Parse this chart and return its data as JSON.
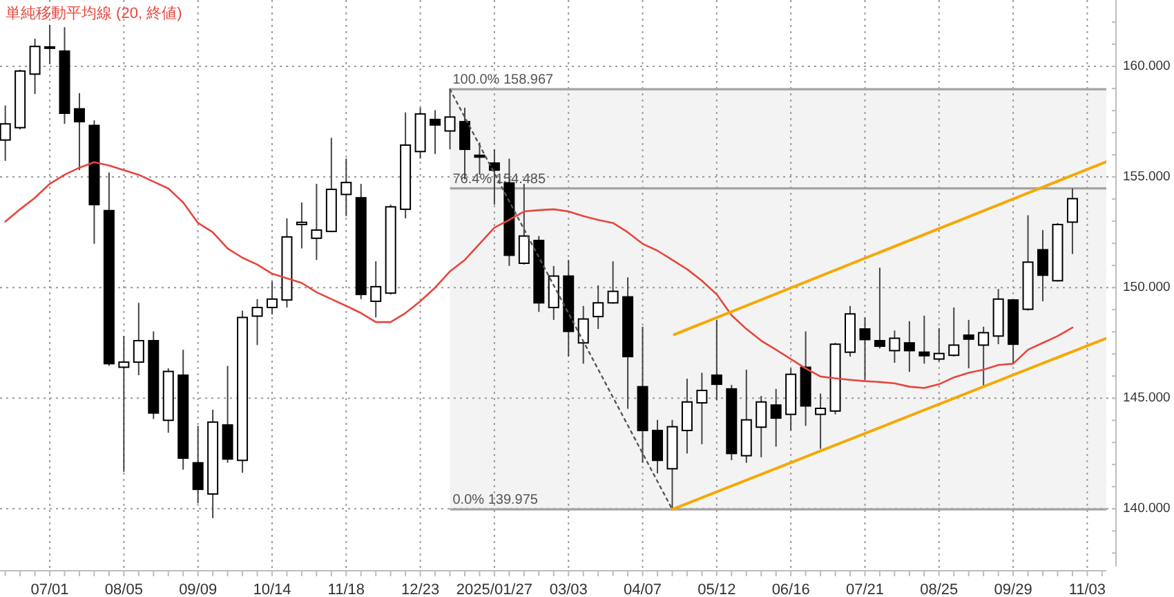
{
  "chart_data": {
    "type": "candlestick",
    "color": "#000000",
    "x": [
      "2024-06-10",
      "2024-06-17",
      "2024-06-24",
      "2024-07-01",
      "2024-07-08",
      "2024-07-15",
      "2024-07-22",
      "2024-07-29",
      "2024-08-05",
      "2024-08-12",
      "2024-08-19",
      "2024-08-26",
      "2024-09-02",
      "2024-09-09",
      "2024-09-16",
      "2024-09-23",
      "2024-09-30",
      "2024-10-07",
      "2024-10-14",
      "2024-10-21",
      "2024-10-28",
      "2024-11-04",
      "2024-11-11",
      "2024-11-18",
      "2024-11-25",
      "2024-12-02",
      "2024-12-09",
      "2024-12-16",
      "2024-12-23",
      "2024-12-30",
      "2025-01-06",
      "2025-01-13",
      "2025-01-20",
      "2025-01-27",
      "2025-02-03",
      "2025-02-10",
      "2025-02-17",
      "2025-02-24",
      "2025-03-03",
      "2025-03-10",
      "2025-03-17",
      "2025-03-24",
      "2025-03-31",
      "2025-04-07",
      "2025-04-14",
      "2025-04-21",
      "2025-04-28",
      "2025-05-05",
      "2025-05-12",
      "2025-05-19",
      "2025-05-26",
      "2025-06-02",
      "2025-06-09",
      "2025-06-16",
      "2025-06-23",
      "2025-06-30",
      "2025-07-07",
      "2025-07-14",
      "2025-07-21",
      "2025-07-28",
      "2025-08-04",
      "2025-08-11",
      "2025-08-18",
      "2025-08-25",
      "2025-09-01",
      "2025-09-08",
      "2025-09-15",
      "2025-09-22",
      "2025-09-29",
      "2025-10-06",
      "2025-10-13",
      "2025-10-20",
      "2025-10-27"
    ],
    "ohlc": [
      [
        156.67,
        158.23,
        155.73,
        157.4
      ],
      [
        157.23,
        159.85,
        157.15,
        159.79
      ],
      [
        159.65,
        161.25,
        158.75,
        160.9
      ],
      [
        160.85,
        161.88,
        160.1,
        160.88
      ],
      [
        160.69,
        161.77,
        157.4,
        157.88
      ],
      [
        158.08,
        158.79,
        155.31,
        157.5
      ],
      [
        157.33,
        157.56,
        151.98,
        153.75
      ],
      [
        153.48,
        155.21,
        146.46,
        146.56
      ],
      [
        146.4,
        147.81,
        141.67,
        146.63
      ],
      [
        146.63,
        149.31,
        146.04,
        147.6
      ],
      [
        147.6,
        148.02,
        144.06,
        144.33
      ],
      [
        144.0,
        146.35,
        143.44,
        146.21
      ],
      [
        146.04,
        147.19,
        141.77,
        142.29
      ],
      [
        142.08,
        143.75,
        140.25,
        140.88
      ],
      [
        140.67,
        144.48,
        139.58,
        143.92
      ],
      [
        143.79,
        146.46,
        142.08,
        142.25
      ],
      [
        142.19,
        148.96,
        141.63,
        148.65
      ],
      [
        148.71,
        149.48,
        147.4,
        149.1
      ],
      [
        149.1,
        150.27,
        148.79,
        149.48
      ],
      [
        149.44,
        153.13,
        149.1,
        152.29
      ],
      [
        152.85,
        153.85,
        151.77,
        152.95
      ],
      [
        152.23,
        154.69,
        151.25,
        152.6
      ],
      [
        152.54,
        156.77,
        152.5,
        154.44
      ],
      [
        154.21,
        155.83,
        153.23,
        154.75
      ],
      [
        154.06,
        154.69,
        149.48,
        149.69
      ],
      [
        149.38,
        151.19,
        148.65,
        150.04
      ],
      [
        149.75,
        153.75,
        149.69,
        153.65
      ],
      [
        153.54,
        157.92,
        153.13,
        156.44
      ],
      [
        156.15,
        158.13,
        155.83,
        157.85
      ],
      [
        157.6,
        158.02,
        156.04,
        157.35
      ],
      [
        157.08,
        158.967,
        156.25,
        157.71
      ],
      [
        157.5,
        158.13,
        154.9,
        156.25
      ],
      [
        155.98,
        156.56,
        155.1,
        155.9
      ],
      [
        155.63,
        156.25,
        153.75,
        155.31
      ],
      [
        154.73,
        155.83,
        150.98,
        151.46
      ],
      [
        151.1,
        154.69,
        151.04,
        152.33
      ],
      [
        152.13,
        152.33,
        148.9,
        149.31
      ],
      [
        149.1,
        150.98,
        148.54,
        150.52
      ],
      [
        150.52,
        151.25,
        146.88,
        148.02
      ],
      [
        147.5,
        149.17,
        146.56,
        148.58
      ],
      [
        148.69,
        150.1,
        148.13,
        149.31
      ],
      [
        149.31,
        151.19,
        149.27,
        149.83
      ],
      [
        149.58,
        150.46,
        144.52,
        146.88
      ],
      [
        145.52,
        148.23,
        142.08,
        143.54
      ],
      [
        143.54,
        144.02,
        141.6,
        142.19
      ],
      [
        141.81,
        144.02,
        139.975,
        143.71
      ],
      [
        143.54,
        145.88,
        142.5,
        144.83
      ],
      [
        144.79,
        146.15,
        142.92,
        145.35
      ],
      [
        146.04,
        148.54,
        144.9,
        145.63
      ],
      [
        145.42,
        145.6,
        142.2,
        142.5
      ],
      [
        142.4,
        146.29,
        142.08,
        144.02
      ],
      [
        143.69,
        145.1,
        142.33,
        144.83
      ],
      [
        144.69,
        145.42,
        142.81,
        144.1
      ],
      [
        144.27,
        146.35,
        143.54,
        146.08
      ],
      [
        146.4,
        148.02,
        143.75,
        144.65
      ],
      [
        144.27,
        145.21,
        142.71,
        144.54
      ],
      [
        144.42,
        147.5,
        144.27,
        147.44
      ],
      [
        147.08,
        149.17,
        146.88,
        148.81
      ],
      [
        148.13,
        148.65,
        145.83,
        147.65
      ],
      [
        147.6,
        150.9,
        147.25,
        147.35
      ],
      [
        147.15,
        148.06,
        146.6,
        147.71
      ],
      [
        147.5,
        148.48,
        146.19,
        147.15
      ],
      [
        147.08,
        148.73,
        146.56,
        146.92
      ],
      [
        146.77,
        148.17,
        146.67,
        147.02
      ],
      [
        146.94,
        149.1,
        146.88,
        147.4
      ],
      [
        147.85,
        148.54,
        146.35,
        147.67
      ],
      [
        147.4,
        148.23,
        145.52,
        147.96
      ],
      [
        147.81,
        149.94,
        147.44,
        149.48
      ],
      [
        149.44,
        149.48,
        146.56,
        147.44
      ],
      [
        149.02,
        153.27,
        148.96,
        151.15
      ],
      [
        151.71,
        152.6,
        149.38,
        150.56
      ],
      [
        150.31,
        152.92,
        150.27,
        152.85
      ],
      [
        152.96,
        154.48,
        151.52,
        154.02
      ]
    ],
    "series": [
      {
        "type": "line",
        "name": "単純移動平均線 (20, 終値)",
        "color": "#e8453c",
        "values": [
          152.98,
          153.54,
          154.06,
          154.69,
          155.1,
          155.42,
          155.67,
          155.52,
          155.31,
          155.1,
          154.79,
          154.48,
          153.85,
          152.92,
          152.5,
          151.77,
          151.35,
          151.04,
          150.63,
          150.42,
          150.21,
          149.79,
          149.48,
          149.17,
          148.85,
          148.44,
          148.44,
          148.85,
          149.38,
          150.0,
          150.73,
          151.25,
          151.98,
          152.71,
          153.06,
          153.44,
          153.5,
          153.54,
          153.44,
          153.23,
          153.06,
          152.92,
          152.5,
          151.98,
          151.67,
          151.25,
          150.83,
          150.31,
          149.69,
          148.75,
          148.13,
          147.6,
          147.19,
          146.77,
          146.35,
          145.98,
          145.9,
          145.83,
          145.77,
          145.73,
          145.67,
          145.52,
          145.46,
          145.63,
          145.94,
          146.15,
          146.29,
          146.5,
          146.56,
          147.19,
          147.5,
          147.81,
          148.19
        ]
      },
      {
        "type": "line",
        "color": "#f5a800",
        "x": [
          "2025-04-22",
          "2025-11-12"
        ],
        "values": [
          147.88,
          155.69
        ]
      },
      {
        "type": "line",
        "color": "#f5a800",
        "x": [
          "2025-04-21",
          "2025-11-12"
        ],
        "values": [
          139.975,
          147.71
        ]
      },
      {
        "type": "line",
        "color": "#555555",
        "line_style": "dotted",
        "x": [
          "2025-01-06",
          "2025-04-21"
        ],
        "values": [
          158.967,
          139.975
        ]
      }
    ],
    "ref_lines": [
      {
        "axis": "y",
        "value": 158.967,
        "label": "100.0% 158.967",
        "color": "#a3a3a3"
      },
      {
        "axis": "y",
        "value": 154.485,
        "label": "76.4% 154.485",
        "color": "#a3a3a3"
      },
      {
        "axis": "y",
        "value": 139.975,
        "label": "0.0% 139.975",
        "color": "#a3a3a3"
      }
    ],
    "bands": [
      {
        "axis": "y",
        "from": 139.975,
        "to": 158.967,
        "color": "#f3f3f3"
      }
    ],
    "xlim": [
      "2024-06-07T12:00",
      "2025-11-12"
    ],
    "ylim": [
      137.2,
      163.0
    ],
    "xticks": [
      {
        "value": "2024-06-10",
        "label": null
      },
      {
        "value": "2024-06-17",
        "label": null
      },
      {
        "value": "2024-06-24",
        "label": null
      },
      {
        "value": "2024-07-01",
        "label": "07/01"
      },
      {
        "value": "2024-07-08",
        "label": null
      },
      {
        "value": "2024-07-15",
        "label": null
      },
      {
        "value": "2024-07-22",
        "label": null
      },
      {
        "value": "2024-07-29",
        "label": null
      },
      {
        "value": "2024-08-05",
        "label": "08/05"
      },
      {
        "value": "2024-08-12",
        "label": null
      },
      {
        "value": "2024-08-19",
        "label": null
      },
      {
        "value": "2024-08-26",
        "label": null
      },
      {
        "value": "2024-09-02",
        "label": null
      },
      {
        "value": "2024-09-09",
        "label": "09/09"
      },
      {
        "value": "2024-09-16",
        "label": null
      },
      {
        "value": "2024-09-23",
        "label": null
      },
      {
        "value": "2024-09-30",
        "label": null
      },
      {
        "value": "2024-10-07",
        "label": null
      },
      {
        "value": "2024-10-14",
        "label": "10/14"
      },
      {
        "value": "2024-10-21",
        "label": null
      },
      {
        "value": "2024-10-28",
        "label": null
      },
      {
        "value": "2024-11-04",
        "label": null
      },
      {
        "value": "2024-11-11",
        "label": null
      },
      {
        "value": "2024-11-18",
        "label": "11/18"
      },
      {
        "value": "2024-11-25",
        "label": null
      },
      {
        "value": "2024-12-02",
        "label": null
      },
      {
        "value": "2024-12-09",
        "label": null
      },
      {
        "value": "2024-12-16",
        "label": null
      },
      {
        "value": "2024-12-23",
        "label": "12/23"
      },
      {
        "value": "2024-12-30",
        "label": null
      },
      {
        "value": "2025-01-06",
        "label": null
      },
      {
        "value": "2025-01-13",
        "label": null
      },
      {
        "value": "2025-01-20",
        "label": null
      },
      {
        "value": "2025-01-27",
        "label": "2025/01/27"
      },
      {
        "value": "2025-02-03",
        "label": null
      },
      {
        "value": "2025-02-10",
        "label": null
      },
      {
        "value": "2025-02-17",
        "label": null
      },
      {
        "value": "2025-02-24",
        "label": null
      },
      {
        "value": "2025-03-03",
        "label": "03/03"
      },
      {
        "value": "2025-03-10",
        "label": null
      },
      {
        "value": "2025-03-17",
        "label": null
      },
      {
        "value": "2025-03-24",
        "label": null
      },
      {
        "value": "2025-03-31",
        "label": null
      },
      {
        "value": "2025-04-07",
        "label": "04/07"
      },
      {
        "value": "2025-04-14",
        "label": null
      },
      {
        "value": "2025-04-21",
        "label": null
      },
      {
        "value": "2025-04-28",
        "label": null
      },
      {
        "value": "2025-05-05",
        "label": null
      },
      {
        "value": "2025-05-12",
        "label": "05/12"
      },
      {
        "value": "2025-05-19",
        "label": null
      },
      {
        "value": "2025-05-26",
        "label": null
      },
      {
        "value": "2025-06-02",
        "label": null
      },
      {
        "value": "2025-06-09",
        "label": null
      },
      {
        "value": "2025-06-16",
        "label": "06/16"
      },
      {
        "value": "2025-06-23",
        "label": null
      },
      {
        "value": "2025-06-30",
        "label": null
      },
      {
        "value": "2025-07-07",
        "label": null
      },
      {
        "value": "2025-07-14",
        "label": null
      },
      {
        "value": "2025-07-21",
        "label": "07/21"
      },
      {
        "value": "2025-07-28",
        "label": null
      },
      {
        "value": "2025-08-04",
        "label": null
      },
      {
        "value": "2025-08-11",
        "label": null
      },
      {
        "value": "2025-08-18",
        "label": null
      },
      {
        "value": "2025-08-25",
        "label": "08/25"
      },
      {
        "value": "2025-09-01",
        "label": null
      },
      {
        "value": "2025-09-08",
        "label": null
      },
      {
        "value": "2025-09-15",
        "label": null
      },
      {
        "value": "2025-09-22",
        "label": null
      },
      {
        "value": "2025-09-29",
        "label": "09/29"
      },
      {
        "value": "2025-10-06",
        "label": null
      },
      {
        "value": "2025-10-13",
        "label": null
      },
      {
        "value": "2025-10-20",
        "label": null
      },
      {
        "value": "2025-10-27",
        "label": null
      },
      {
        "value": "2025-11-03",
        "label": "11/03"
      },
      {
        "value": "2025-11-10",
        "label": null
      }
    ],
    "yticks": [
      {
        "value": 138,
        "label": null
      },
      {
        "value": 139,
        "label": null
      },
      {
        "value": 140,
        "label": "140.000"
      },
      {
        "value": 141,
        "label": null
      },
      {
        "value": 142,
        "label": null
      },
      {
        "value": 143,
        "label": null
      },
      {
        "value": 144,
        "label": null
      },
      {
        "value": 145,
        "label": "145.000"
      },
      {
        "value": 146,
        "label": null
      },
      {
        "value": 147,
        "label": null
      },
      {
        "value": 148,
        "label": null
      },
      {
        "value": 149,
        "label": null
      },
      {
        "value": 150,
        "label": "150.000"
      },
      {
        "value": 151,
        "label": null
      },
      {
        "value": 152,
        "label": null
      },
      {
        "value": 153,
        "label": null
      },
      {
        "value": 154,
        "label": null
      },
      {
        "value": 155,
        "label": "155.000"
      },
      {
        "value": 156,
        "label": null
      },
      {
        "value": 157,
        "label": null
      },
      {
        "value": 158,
        "label": null
      },
      {
        "value": 159,
        "label": null
      },
      {
        "value": 160,
        "label": "160.000"
      },
      {
        "value": 161,
        "label": null
      },
      {
        "value": 162,
        "label": null
      }
    ],
    "grid": true,
    "legend": "top left"
  }
}
